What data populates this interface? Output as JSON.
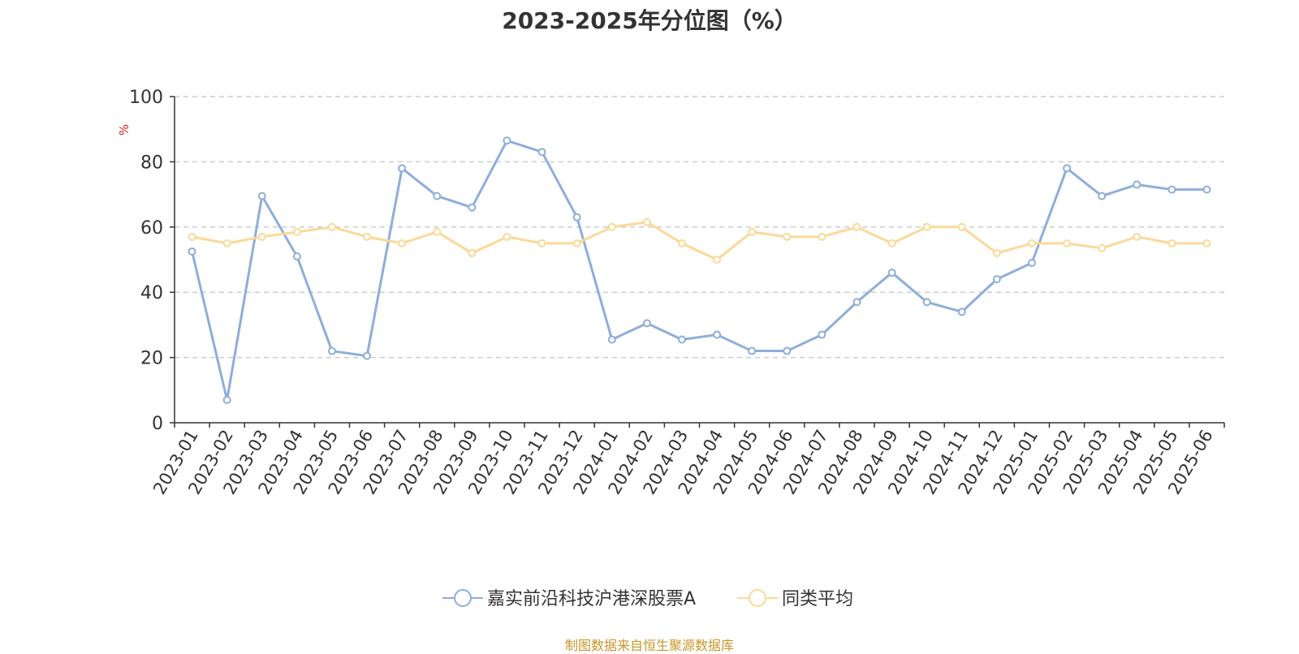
{
  "title": "2023-2025年分位图（%）",
  "footer": "制图数据来自恒生聚源数据库",
  "chart_data": {
    "type": "line",
    "title": "2023-2025年分位图（%）",
    "ylabel": "%",
    "ylim": [
      0,
      100
    ],
    "y_ticks": [
      "0",
      "20",
      "40",
      "60",
      "80",
      "100"
    ],
    "grid": true,
    "legend_position": "bottom-center",
    "categories": [
      "2023-01",
      "2023-02",
      "2023-03",
      "2023-04",
      "2023-05",
      "2023-06",
      "2023-07",
      "2023-08",
      "2023-09",
      "2023-10",
      "2023-11",
      "2023-12",
      "2024-01",
      "2024-02",
      "2024-03",
      "2024-04",
      "2024-05",
      "2024-06",
      "2024-07",
      "2024-08",
      "2024-09",
      "2024-10",
      "2024-11",
      "2024-12",
      "2025-01",
      "2025-02",
      "2025-03",
      "2025-04",
      "2025-05",
      "2025-06"
    ],
    "series": [
      {
        "name": "嘉实前沿科技沪港深股票A",
        "color": "#8eaedb",
        "values": [
          52.5,
          7,
          69.5,
          51,
          22,
          20.5,
          78,
          69.5,
          66,
          86.5,
          83,
          63,
          25.5,
          30.5,
          25.5,
          27,
          22,
          22,
          27,
          37,
          46,
          37,
          34,
          44,
          49,
          78,
          69.5,
          73,
          71.5,
          71.5
        ]
      },
      {
        "name": "同类平均",
        "color": "#fbd998",
        "values": [
          57,
          55,
          57,
          58.5,
          60,
          57,
          55,
          58.5,
          52,
          57,
          55,
          55,
          60,
          61.5,
          55,
          50,
          58.5,
          57,
          57,
          60,
          55,
          60,
          60,
          52,
          55,
          55,
          53.5,
          57,
          55,
          55
        ]
      }
    ]
  }
}
